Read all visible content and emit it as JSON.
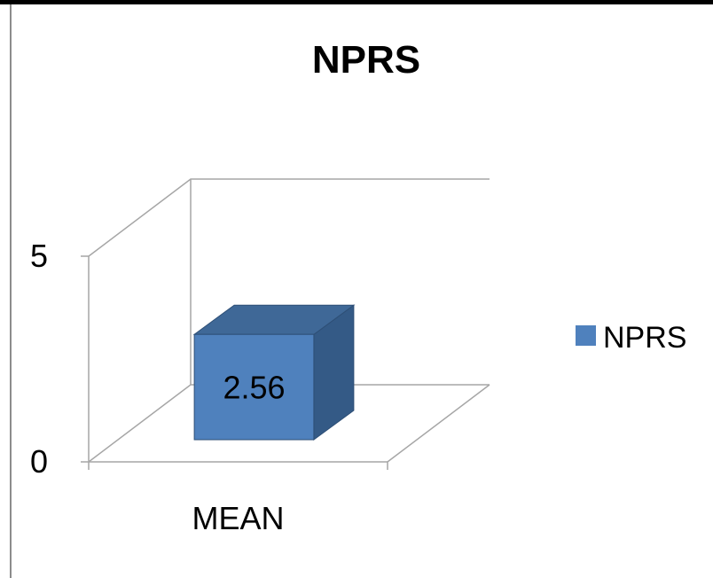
{
  "chart_data": {
    "type": "bar",
    "title": "NPRS",
    "categories": [
      "MEAN"
    ],
    "series": [
      {
        "name": "NPRS",
        "values": [
          2.56
        ]
      }
    ],
    "data_labels": [
      "2.56"
    ],
    "ylim": [
      0,
      5
    ],
    "yticks": [
      0,
      5
    ],
    "xlabel": "",
    "ylabel": "",
    "legend": "right",
    "grid": true,
    "style": "3d-clustered-column",
    "colors": {
      "bar_front": "#4F81BD",
      "bar_top": "#3F6897",
      "bar_side": "#345A86",
      "bar_edge": "#2E4F76",
      "axis": "#A6A6A6"
    }
  }
}
